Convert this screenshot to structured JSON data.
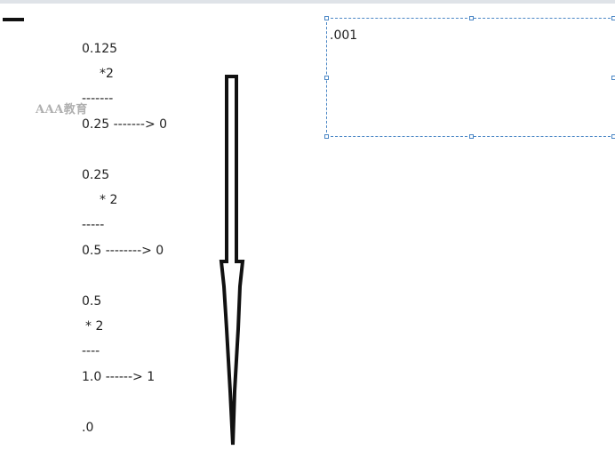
{
  "steps": [
    {
      "value": "0.125",
      "multiplier": "*2",
      "divider": "-------",
      "result": "0.25 -------> 0"
    },
    {
      "value": "0.25",
      "multiplier": "* 2",
      "divider": "-----",
      "result": "0.5 --------> 0"
    },
    {
      "value": "0.5",
      "multiplier": "* 2",
      "divider": "----",
      "result": "1.0 ------> 1"
    }
  ],
  "final_value": ".0",
  "text_box": {
    "content": ".001"
  },
  "watermark": "AAA教育",
  "icons": {
    "arrow": "down-arrow-icon"
  },
  "colors": {
    "selection_border": "#4a86c5",
    "text": "#222222",
    "watermark": "#969696"
  }
}
